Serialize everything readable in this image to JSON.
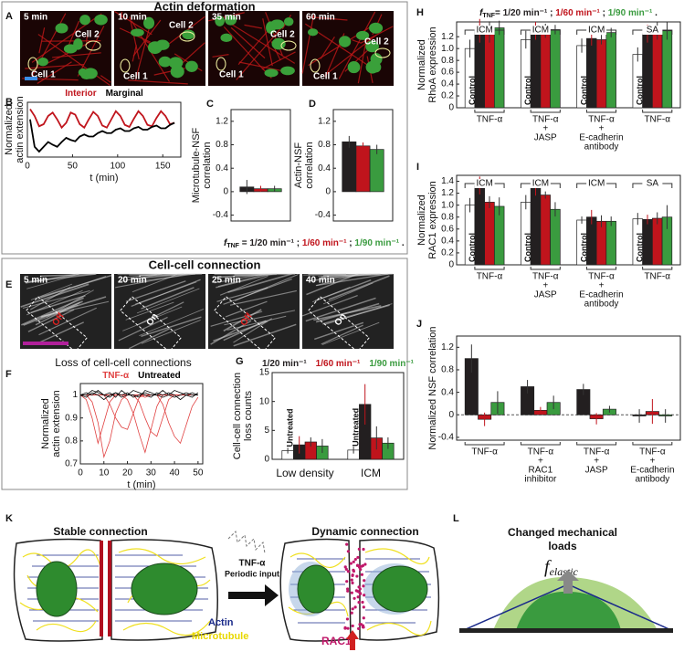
{
  "actin_deformation": {
    "panel": "A",
    "title": "Actin deformation",
    "times": [
      "5 min",
      "10 min",
      "35 min",
      "60 min"
    ],
    "cells": [
      "Cell 1",
      "Cell 2"
    ]
  },
  "cell_cell_connection": {
    "panel": "E",
    "title": "Cell-cell connection",
    "times": [
      "5 min",
      "20 min",
      "25 min",
      "40 min"
    ],
    "states": [
      "Off",
      "On",
      "Off",
      "On"
    ],
    "state_colors": [
      "#e02020",
      "#ffffff",
      "#e02020",
      "#ffffff"
    ]
  },
  "chart_data": [
    {
      "type": "line",
      "panel": "B",
      "legend": "top",
      "x_label": "t (min)",
      "y_label": [
        "Normalized",
        "actin extension"
      ],
      "x": [
        3,
        8,
        13,
        18,
        23,
        28,
        33,
        38,
        43,
        48,
        53,
        58,
        63,
        68,
        73,
        78,
        83,
        88,
        93,
        98,
        103,
        108,
        113,
        118,
        123,
        128,
        133,
        138,
        143,
        148,
        153,
        158,
        163
      ],
      "series": [
        {
          "name": "Interior",
          "color": "#c0141c",
          "values": [
            1.0,
            0.9,
            0.75,
            0.78,
            0.9,
            0.95,
            0.85,
            0.73,
            0.8,
            0.95,
            0.92,
            0.78,
            0.73,
            0.85,
            0.96,
            0.9,
            0.76,
            0.73,
            0.85,
            0.97,
            0.9,
            0.77,
            0.74,
            0.86,
            0.97,
            0.9,
            0.77,
            0.75,
            0.87,
            0.97,
            0.9,
            0.78,
            0.8
          ]
        },
        {
          "name": "Marginal",
          "color": "#000000",
          "values": [
            0.85,
            0.45,
            0.38,
            0.45,
            0.52,
            0.48,
            0.45,
            0.52,
            0.58,
            0.55,
            0.53,
            0.6,
            0.63,
            0.6,
            0.6,
            0.65,
            0.68,
            0.65,
            0.65,
            0.7,
            0.72,
            0.68,
            0.68,
            0.72,
            0.74,
            0.7,
            0.7,
            0.74,
            0.76,
            0.72,
            0.72,
            0.77,
            0.8
          ]
        }
      ],
      "xlim": [
        0,
        170
      ],
      "xticks": [
        0,
        50,
        100,
        150
      ],
      "ylim": [
        0.3,
        1.1
      ]
    },
    {
      "type": "bar",
      "panel": "C",
      "legend": "bottom",
      "y_label": [
        "Microtubule-NSF",
        "correlation"
      ],
      "legend_prefix": "f",
      "legend_subscript": "TNF",
      "legend_separators": [
        " = ",
        " ; ",
        " ; ",
        " ."
      ],
      "series": [
        {
          "name": "1/20 min⁻¹",
          "color": "#231f20",
          "values": [
            0.08
          ],
          "errors": [
            0.12
          ]
        },
        {
          "name": "1/60 min⁻¹",
          "color": "#c0141c",
          "values": [
            0.05
          ],
          "errors": [
            0.05
          ]
        },
        {
          "name": "1/90 min⁻¹",
          "color": "#3a9b3f",
          "values": [
            0.05
          ],
          "errors": [
            0.05
          ]
        }
      ],
      "ylim": [
        -0.5,
        1.4
      ],
      "yticks": [
        -0.4,
        0,
        0.4,
        0.8,
        1.2
      ]
    },
    {
      "type": "bar",
      "panel": "D",
      "y_label": [
        "Actin-NSF",
        "correlation"
      ],
      "series": [
        {
          "color": "#231f20",
          "values": [
            0.85
          ],
          "errors": [
            0.1
          ]
        },
        {
          "color": "#c0141c",
          "values": [
            0.78
          ],
          "errors": [
            0.06
          ]
        },
        {
          "color": "#3a9b3f",
          "values": [
            0.72
          ],
          "errors": [
            0.08
          ]
        }
      ],
      "ylim": [
        -0.5,
        1.4
      ],
      "yticks": [
        -0.4,
        0,
        0.4,
        0.8,
        1.2
      ]
    },
    {
      "type": "line",
      "panel": "F",
      "title": "Loss of cell-cell connections",
      "legend": "top",
      "x_label": "t (min)",
      "y_label": [
        "Normalized",
        "actin extension"
      ],
      "x": [
        0,
        2.5,
        5,
        7.5,
        10,
        12.5,
        15,
        17.5,
        20,
        22.5,
        25,
        27.5,
        30,
        32.5,
        35,
        37.5,
        40,
        42.5,
        45,
        47.5,
        50
      ],
      "series": [
        {
          "name": "TNF-α",
          "color": "#e04040",
          "traces": [
            [
              1,
              1,
              0.97,
              0.88,
              0.73,
              0.8,
              0.92,
              0.98,
              1,
              1,
              1,
              0.99,
              1,
              1,
              1,
              1,
              1,
              1,
              1,
              1,
              1
            ],
            [
              1,
              0.98,
              0.9,
              0.79,
              0.88,
              0.97,
              1,
              1,
              1,
              1,
              1,
              1,
              1,
              1,
              1,
              1,
              1,
              1,
              1,
              1,
              1
            ],
            [
              1,
              1,
              1,
              1,
              1,
              1,
              1,
              1,
              0.98,
              0.92,
              0.83,
              0.75,
              0.85,
              0.95,
              1,
              1,
              1,
              1,
              1,
              1,
              1
            ],
            [
              1,
              1,
              1,
              1,
              1,
              1,
              1,
              1,
              1,
              1,
              0.97,
              0.9,
              0.84,
              0.82,
              0.9,
              0.98,
              1,
              1,
              1,
              1,
              1
            ],
            [
              1,
              1,
              1,
              1,
              1,
              1,
              1,
              1,
              1,
              1,
              1,
              1,
              1,
              1,
              0.96,
              0.88,
              0.82,
              0.79,
              0.87,
              0.95,
              0.99
            ],
            [
              1,
              1,
              1,
              1,
              1,
              0.96,
              0.9,
              0.86,
              0.85,
              0.92,
              0.99,
              1,
              1,
              1,
              1,
              1,
              1,
              1,
              1,
              1,
              1
            ]
          ]
        },
        {
          "name": "Untreated",
          "color": "#000000",
          "traces": [
            [
              1,
              1.01,
              1,
              1.02,
              1,
              0.99,
              1.01,
              1,
              1.01,
              0.99,
              1,
              1.01,
              1,
              1,
              1.02,
              1,
              0.99,
              1,
              1.01,
              1,
              1
            ],
            [
              1,
              0.99,
              1.01,
              1,
              0.98,
              1,
              1.01,
              0.99,
              1,
              1.02,
              1.01,
              1,
              0.99,
              1.01,
              1,
              1.01,
              1,
              0.98,
              1,
              1.01,
              1
            ],
            [
              1,
              1,
              1.02,
              1.01,
              1,
              1.01,
              0.99,
              1.02,
              1,
              1,
              0.99,
              1.02,
              1.01,
              1,
              0.99,
              1,
              1.02,
              1.01,
              1,
              0.99,
              1.01
            ]
          ]
        }
      ],
      "xlim": [
        0,
        52
      ],
      "xticks": [
        0,
        10,
        20,
        30,
        40,
        50
      ],
      "ylim": [
        0.7,
        1.05
      ],
      "yticks": [
        0.7,
        0.8,
        0.9,
        1
      ]
    },
    {
      "type": "bar",
      "panel": "G",
      "legend": "top",
      "y_label": [
        "Cell-cell connection",
        "loss counts"
      ],
      "categories": [
        "Low density",
        "ICM"
      ],
      "series": [
        {
          "name": "Untreated",
          "color": "#ffffff",
          "values": [
            1.5,
            1.6
          ],
          "errors": [
            0.5,
            0.6
          ]
        },
        {
          "name": "1/20 min⁻¹",
          "color": "#231f20",
          "values": [
            2.5,
            9.5
          ],
          "errors": [
            1.5,
            3.5
          ]
        },
        {
          "name": "1/60 min⁻¹",
          "color": "#c0141c",
          "values": [
            3.0,
            3.7
          ],
          "errors": [
            0.8,
            2.0
          ]
        },
        {
          "name": "1/90 min⁻¹",
          "color": "#3a9b3f",
          "values": [
            2.3,
            2.8
          ],
          "errors": [
            1.2,
            1.0
          ]
        }
      ],
      "ylim": [
        0,
        15
      ],
      "yticks": [
        0,
        5,
        10,
        15
      ]
    },
    {
      "type": "bar",
      "panel": "H",
      "legend": "top",
      "legend_prefix": "f",
      "legend_subscript": "TNF",
      "legend_separators": [
        "= ",
        " ; ",
        " ; ",
        " ."
      ],
      "y_label": [
        "Normalized",
        "RhoA expression"
      ],
      "group_labels": [
        "ICM",
        "ICM",
        "ICM",
        "SA"
      ],
      "categories": [
        [
          "TNF-α"
        ],
        [
          "TNF-α",
          "+",
          "JASP"
        ],
        [
          "TNF-α",
          "+",
          "E-cadherin",
          "antibody"
        ],
        [
          "TNF-α"
        ]
      ],
      "series": [
        {
          "name": "Control",
          "color": "#ffffff",
          "values": [
            1.0,
            1.15,
            1.05,
            0.9
          ],
          "errors": [
            0.15,
            0.15,
            0.12,
            0.12
          ]
        },
        {
          "name": "1/20 min⁻¹",
          "color": "#231f20",
          "values": [
            1.3,
            1.3,
            1.17,
            1.25
          ],
          "errors": [
            0.2,
            0.15,
            0.12,
            0.15
          ]
        },
        {
          "name": "1/60 min⁻¹",
          "color": "#c0141c",
          "values": [
            1.28,
            1.3,
            1.15,
            1.3
          ],
          "errors": [
            0.18,
            0.12,
            0.08,
            0.15
          ]
        },
        {
          "name": "1/90 min⁻¹",
          "color": "#3a9b3f",
          "values": [
            1.35,
            1.32,
            1.27,
            1.3
          ],
          "errors": [
            0.12,
            0.08,
            0.08,
            0.15
          ]
        }
      ],
      "ylim": [
        0,
        1.45
      ],
      "yticks": [
        0,
        0.2,
        0.4,
        0.6,
        0.8,
        {
          "value": 1,
          "label": "1.0"
        },
        1.2
      ]
    },
    {
      "type": "bar",
      "panel": "I",
      "y_label": [
        "Normalized",
        "RAC1 expression"
      ],
      "group_labels": [
        "ICM",
        "ICM",
        "ICM",
        "SA"
      ],
      "categories": [
        [
          "TNF-α"
        ],
        [
          "TNF-α",
          "+",
          "JASP"
        ],
        [
          "TNF-α",
          "+",
          "E-cadherin",
          "antibody"
        ],
        [
          "TNF-α"
        ]
      ],
      "series": [
        {
          "name": "Control",
          "color": "#ffffff",
          "values": [
            1.0,
            1.05,
            0.75,
            0.77
          ],
          "errors": [
            0.12,
            0.12,
            0.06,
            0.1
          ]
        },
        {
          "color": "#231f20",
          "values": [
            1.33,
            1.28,
            0.8,
            0.76
          ],
          "errors": [
            0.15,
            0.12,
            0.12,
            0.08
          ]
        },
        {
          "color": "#c0141c",
          "values": [
            1.05,
            1.17,
            0.73,
            0.78
          ],
          "errors": [
            0.1,
            0.06,
            0.1,
            0.1
          ]
        },
        {
          "color": "#3a9b3f",
          "values": [
            0.98,
            0.93,
            0.73,
            0.8
          ],
          "errors": [
            0.15,
            0.12,
            0.08,
            0.2
          ]
        }
      ],
      "ylim": [
        0,
        1.5
      ],
      "yticks": [
        0,
        0.2,
        0.4,
        0.6,
        0.8,
        {
          "value": 1,
          "label": "1.0"
        },
        1.2,
        1.4
      ]
    },
    {
      "type": "bar",
      "panel": "J",
      "zero_line": true,
      "y_label": [
        "Normalized NSF correlation"
      ],
      "categories": [
        [
          "TNF-α"
        ],
        [
          "TNF-α",
          "+",
          "RAC1",
          "inhibitor"
        ],
        [
          "TNF-α",
          "+",
          "JASP"
        ],
        [
          "TNF-α",
          "+",
          "E-cadherin",
          "antibody"
        ]
      ],
      "series": [
        {
          "color": "#231f20",
          "values": [
            1.0,
            0.5,
            0.45,
            -0.02
          ],
          "errors": [
            0.25,
            0.12,
            0.1,
            0.12
          ]
        },
        {
          "color": "#c0141c",
          "values": [
            -0.08,
            0.08,
            -0.07,
            0.06
          ],
          "errors": [
            0.12,
            0.06,
            0.1,
            0.22
          ]
        },
        {
          "color": "#3a9b3f",
          "values": [
            0.22,
            0.22,
            0.1,
            -0.02
          ],
          "errors": [
            0.2,
            0.12,
            0.06,
            0.12
          ]
        }
      ],
      "ylim": [
        -0.45,
        1.4
      ],
      "yticks": [
        -0.4,
        0,
        0.4,
        0.8,
        1.2
      ]
    }
  ],
  "mechanism": {
    "panel": "K",
    "stable": "Stable connection",
    "dynamic": "Dynamic connection",
    "stimulus": "TNF-α",
    "stimulus_note": "Periodic input",
    "actin": "Actin",
    "microtubule": "Microtubule",
    "rac1": "RAC1"
  },
  "loads": {
    "panel": "L",
    "title": [
      "Changed mechanical",
      "loads"
    ],
    "force_symbol": "f",
    "force_subscript": "elastic"
  }
}
